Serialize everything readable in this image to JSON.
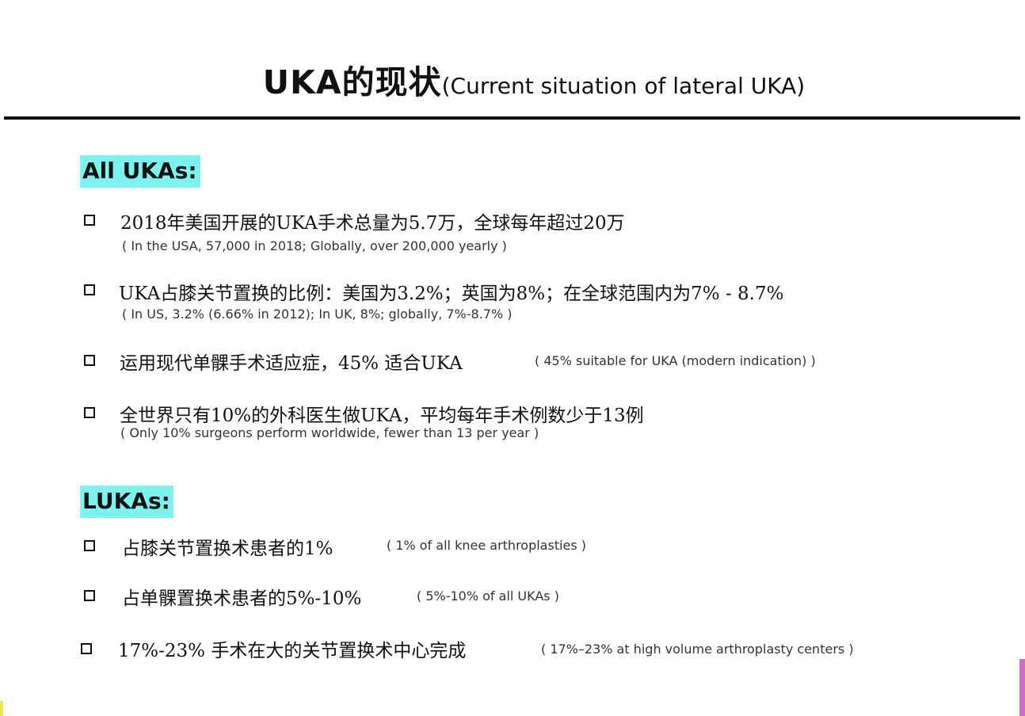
{
  "slide": {
    "title_main": "UKA的现状",
    "title_sub": "(Current situation of lateral UKA)"
  },
  "sections": [
    {
      "label": "All UKAs:",
      "items": [
        {
          "cn": "2018年美国开展的UKA手术总量为5.7万，全球每年超过20万",
          "en": "( In the USA, 57,000 in 2018; Globally, over 200,000 yearly )"
        },
        {
          "cn": "UKA占膝关节置换的比例：美国为3.2%；英国为8%；在全球范围内为7% - 8.7%",
          "en": "( In US, 3.2% (6.66% in 2012); In UK, 8%; globally, 7%-8.7% )"
        },
        {
          "cn": "运用现代单髁手术适应症，45% 适合UKA",
          "en": "( 45% suitable for UKA (modern indication) )"
        },
        {
          "cn": "全世界只有10%的外科医生做UKA，平均每年手术例数少于13例",
          "en": "( Only 10% surgeons perform worldwide, fewer than 13 per year )"
        }
      ]
    },
    {
      "label": "LUKAs:",
      "items": [
        {
          "cn": "占膝关节置换术患者的1%",
          "en": "( 1% of all knee arthroplasties )"
        },
        {
          "cn": "占单髁置换术患者的5%-10%",
          "en": "( 5%-10% of all UKAs )"
        },
        {
          "cn": "17%-23% 手术在大的关节置换术中心完成",
          "en": "( 17%–23% at high volume arthroplasty centers )"
        }
      ]
    }
  ],
  "colors": {
    "label_highlight": "#7df3f0",
    "accent_bar": "#c673c6"
  }
}
